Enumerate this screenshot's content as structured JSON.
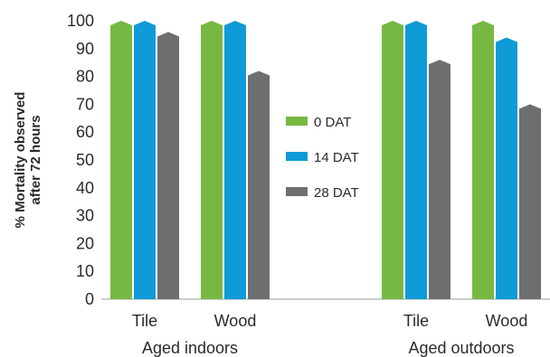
{
  "chart_data": {
    "type": "bar",
    "ylabel": [
      "% Mortality observed",
      "after 72 hours"
    ],
    "ylim": [
      0,
      100
    ],
    "yticks": [
      "0",
      "10",
      "20",
      "30",
      "40",
      "50",
      "60",
      "70",
      "80",
      "90",
      "100"
    ],
    "groups": [
      {
        "label": "Aged indoors",
        "categories": [
          "Tile",
          "Wood"
        ]
      },
      {
        "label": "Aged outdoors",
        "categories": [
          "Tile",
          "Wood"
        ]
      }
    ],
    "categories": [
      "Tile",
      "Wood",
      "Tile",
      "Wood"
    ],
    "series": [
      {
        "name": "0 DAT",
        "color": "#77b843",
        "values": [
          100,
          100,
          100,
          100
        ]
      },
      {
        "name": "14 DAT",
        "color": "#0e9bd7",
        "values": [
          100,
          100,
          100,
          94
        ]
      },
      {
        "name": "28 DAT",
        "color": "#6d6e70",
        "values": [
          96,
          82,
          86,
          70
        ]
      }
    ],
    "legend_position": "center"
  }
}
